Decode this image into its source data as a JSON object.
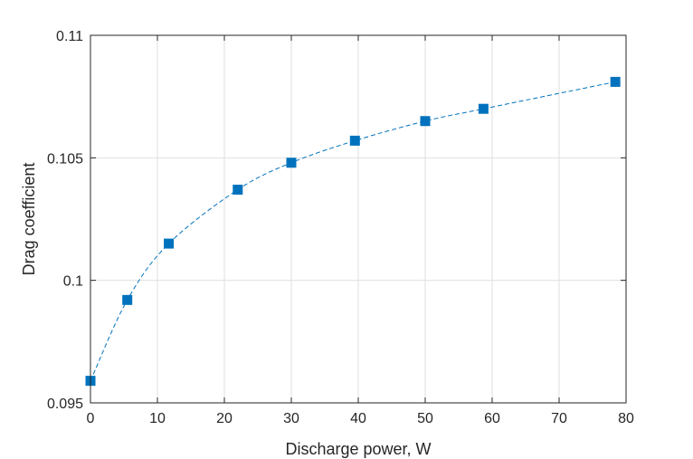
{
  "chart_data": {
    "type": "line",
    "title": "",
    "xlabel": "Discharge power, W",
    "ylabel": "Drag coefficient",
    "xlim": [
      0,
      80
    ],
    "ylim": [
      0.095,
      0.11
    ],
    "x_ticks": [
      0,
      10,
      20,
      30,
      40,
      50,
      60,
      70,
      80
    ],
    "x_tick_labels": [
      "0",
      "10",
      "20",
      "30",
      "40",
      "50",
      "60",
      "70",
      "80"
    ],
    "y_ticks": [
      0.095,
      0.1,
      0.105,
      0.11
    ],
    "y_tick_labels": [
      "0.095",
      "0.1",
      "0.105",
      "0.11"
    ],
    "grid": true,
    "series": [
      {
        "x": [
          0,
          5.5,
          11.7,
          22,
          30,
          39.5,
          50,
          58.7,
          78.4
        ],
        "y": [
          0.0959,
          0.0992,
          0.1015,
          0.1037,
          0.1048,
          0.1057,
          0.1065,
          0.107,
          0.1081
        ],
        "marker": "square",
        "line_style": "dashed",
        "color": "#0072bd"
      }
    ]
  }
}
